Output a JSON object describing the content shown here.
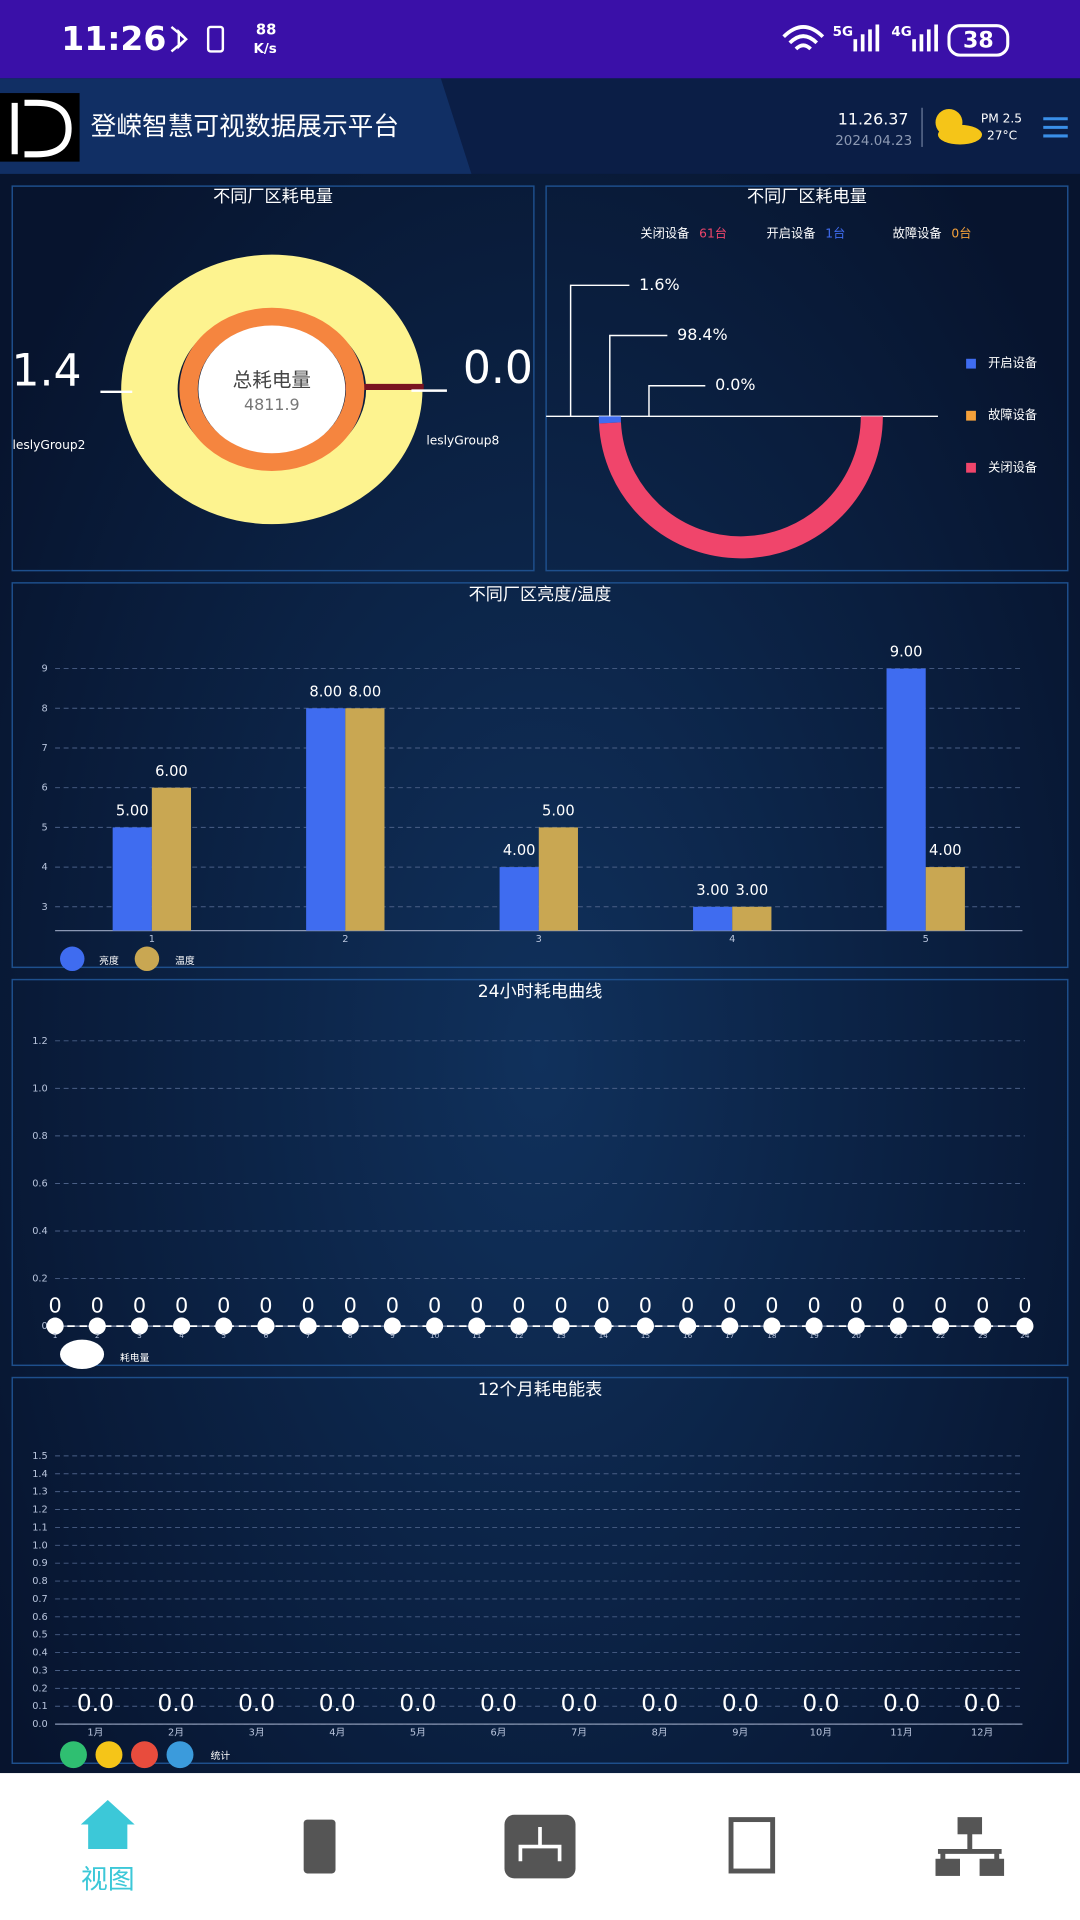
{
  "status_bar": {
    "time": "11:26",
    "net_speed": "88",
    "net_unit": "K/s",
    "net_5g": "5G",
    "net_4g": "4G",
    "battery": "38"
  },
  "header": {
    "title": "登嵘智慧可视数据展示平台",
    "time": "11.26.37",
    "date": "2024.04.23",
    "pm": "PM 2.5",
    "temp": "27°C"
  },
  "chart_data": [
    {
      "type": "donut",
      "title": "不同厂区耗电量",
      "center_label": "总耗电量",
      "center_value": "4811.9",
      "categories": [
        "leslyGroup2",
        "leslyGroup8"
      ],
      "values": [
        1.4,
        0.0
      ],
      "value_labels": [
        "1.4",
        "0.0"
      ],
      "colors": [
        "#fdf38f",
        "#7a1420"
      ]
    },
    {
      "type": "half-donut",
      "title": "不同厂区耗电量",
      "summary": [
        {
          "name": "关闭设备",
          "count": "61台",
          "color": "#f0456b"
        },
        {
          "name": "开启设备",
          "count": "1台",
          "color": "#3f6cf0"
        },
        {
          "name": "故障设备",
          "count": "0台",
          "color": "#f5a13a"
        }
      ],
      "categories": [
        "开启设备",
        "关闭设备",
        "故障设备"
      ],
      "values": [
        1.6,
        98.4,
        0.0
      ],
      "value_labels": [
        "1.6%",
        "98.4%",
        "0.0%"
      ],
      "colors": [
        "#3f6cf0",
        "#f0456b",
        "#f5a13a"
      ],
      "legend_order": [
        0,
        2,
        1
      ]
    },
    {
      "type": "bar",
      "title": "不同厂区亮度/温度",
      "categories": [
        "1",
        "2",
        "3",
        "4",
        "5"
      ],
      "series": [
        {
          "name": "亮度",
          "color": "#3f6cf0",
          "values": [
            5,
            8,
            4,
            3,
            9
          ],
          "value_labels": [
            "5.00",
            "8.00",
            "4.00",
            "3.00",
            "9.00"
          ]
        },
        {
          "name": "温度",
          "color": "#c9a752",
          "values": [
            6,
            8,
            5,
            3,
            4
          ],
          "value_labels": [
            "6.00",
            "8.00",
            "5.00",
            "3.00",
            "4.00"
          ]
        }
      ],
      "ylim": [
        2.4,
        9
      ],
      "yticks": [
        3,
        4,
        5,
        6,
        7,
        8,
        9
      ],
      "grid": true
    },
    {
      "type": "line",
      "title": "24小时耗电曲线",
      "categories": [
        "1",
        "2",
        "3",
        "4",
        "5",
        "6",
        "7",
        "8",
        "9",
        "10",
        "11",
        "12",
        "13",
        "14",
        "15",
        "16",
        "17",
        "18",
        "19",
        "20",
        "21",
        "22",
        "23",
        "24"
      ],
      "series": [
        {
          "name": "耗电量",
          "color": "#ffffff",
          "values": [
            0,
            0,
            0,
            0,
            0,
            0,
            0,
            0,
            0,
            0,
            0,
            0,
            0,
            0,
            0,
            0,
            0,
            0,
            0,
            0,
            0,
            0,
            0,
            0
          ]
        }
      ],
      "ylim": [
        0,
        1.2
      ],
      "yticks": [
        0,
        0.2,
        0.4,
        0.6,
        0.8,
        {
          "value": 1.0,
          "label": "1.0"
        },
        1.2
      ],
      "grid": true
    },
    {
      "type": "bar",
      "title": "12个月耗电能表",
      "categories": [
        "1月",
        "2月",
        "3月",
        "4月",
        "5月",
        "6月",
        "7月",
        "8月",
        "9月",
        "10月",
        "11月",
        "12月"
      ],
      "series": [
        {
          "name": "统计",
          "color": "#3b9bdc",
          "values": [
            0,
            0,
            0,
            0,
            0,
            0,
            0,
            0,
            0,
            0,
            0,
            0
          ],
          "value_labels": [
            "0.0",
            "0.0",
            "0.0",
            "0.0",
            "0.0",
            "0.0",
            "0.0",
            "0.0",
            "0.0",
            "0.0",
            "0.0",
            "0.0"
          ]
        }
      ],
      "legend_colors": [
        "#2fbf71",
        "#f5c518",
        "#e84c3d",
        "#3b9bdc"
      ],
      "ylim": [
        0,
        1.5
      ],
      "yticks": [
        {
          "value": 0,
          "label": "0.0"
        },
        0.1,
        0.2,
        0.3,
        0.4,
        0.5,
        0.6,
        0.7,
        0.8,
        0.9,
        {
          "value": 1,
          "label": "1.0"
        },
        1.1,
        1.2,
        1.3,
        1.4,
        1.5
      ],
      "grid": true
    }
  ],
  "nav": {
    "home": "视图"
  }
}
